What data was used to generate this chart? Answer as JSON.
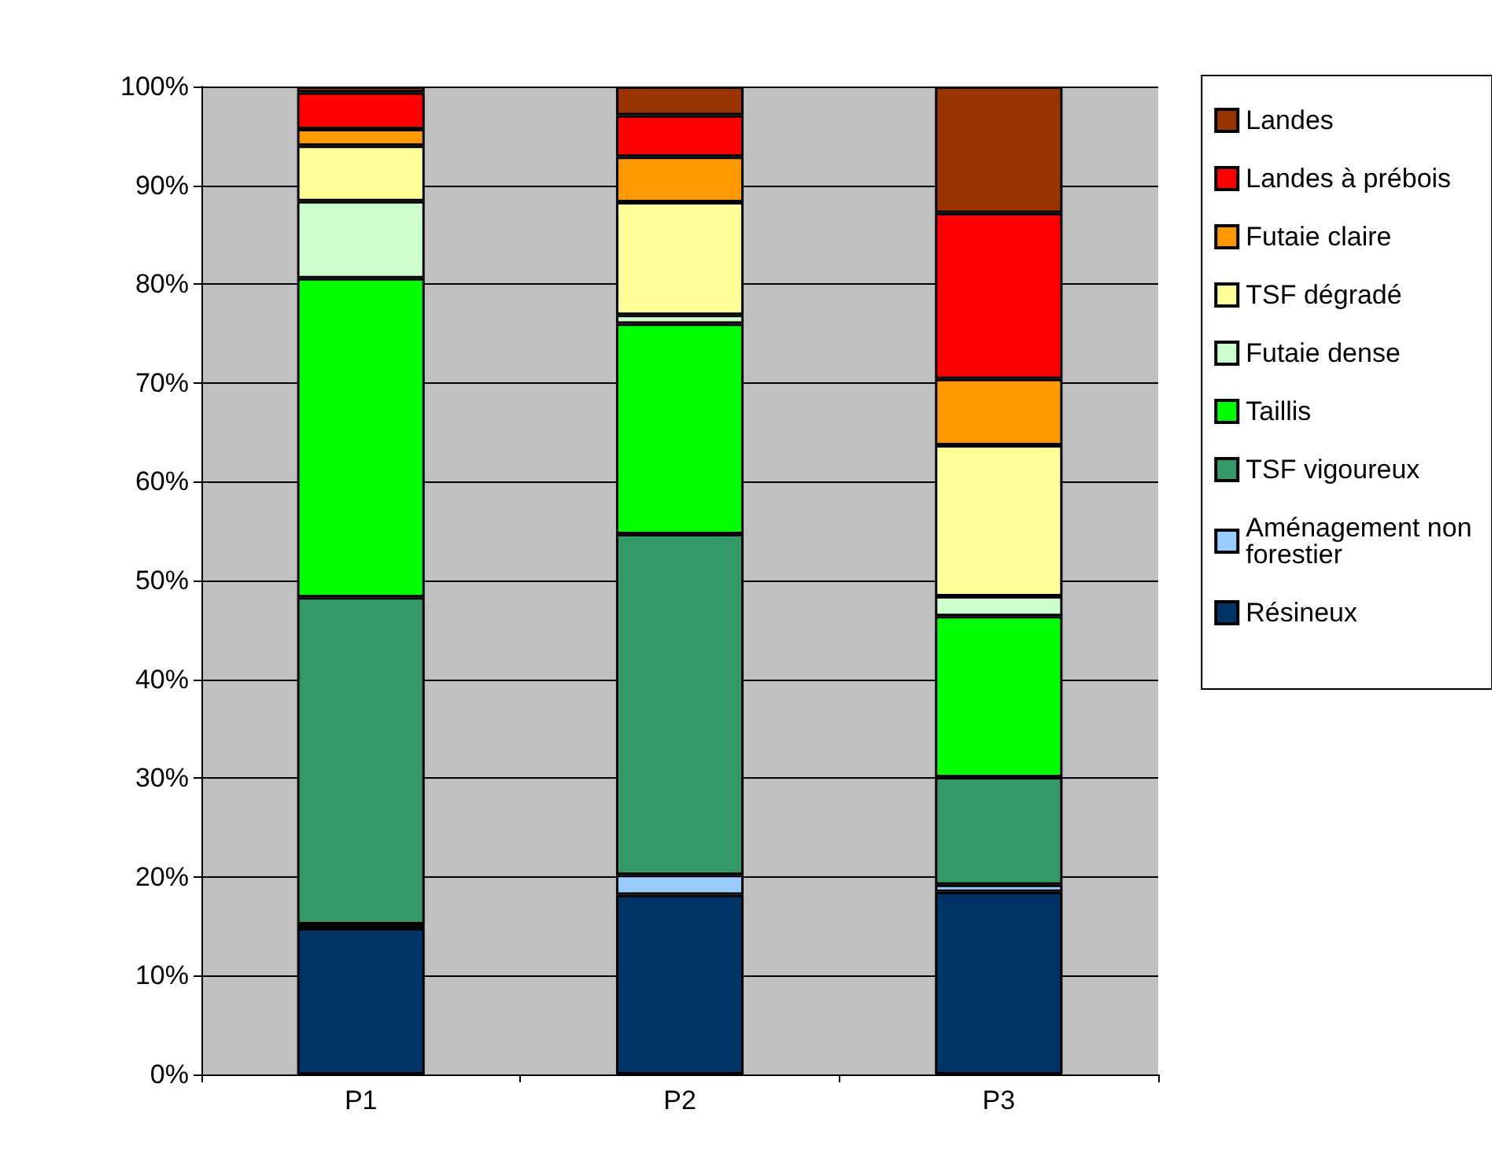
{
  "chart_data": {
    "type": "bar",
    "stacked": true,
    "categories": [
      "P1",
      "P2",
      "P3"
    ],
    "series": [
      {
        "name": "Résineux",
        "color": "#003366",
        "values": [
          14.8,
          18.2,
          18.5
        ]
      },
      {
        "name": "Aménagement non forestier",
        "color": "#99ccff",
        "values": [
          0.4,
          2.0,
          0.7
        ]
      },
      {
        "name": "TSF vigoureux",
        "color": "#339966",
        "values": [
          33.1,
          34.5,
          10.9
        ]
      },
      {
        "name": "Taillis",
        "color": "#00ff00",
        "values": [
          32.3,
          21.3,
          16.3
        ]
      },
      {
        "name": "Futaie dense",
        "color": "#ccffcc",
        "values": [
          7.8,
          0.9,
          2.0
        ]
      },
      {
        "name": "TSF dégradé",
        "color": "#ffff99",
        "values": [
          5.6,
          11.4,
          15.3
        ]
      },
      {
        "name": "Futaie claire",
        "color": "#ff9900",
        "values": [
          1.7,
          4.6,
          6.7
        ]
      },
      {
        "name": "Landes à prébois",
        "color": "#ff0000",
        "values": [
          3.7,
          4.2,
          16.8
        ]
      },
      {
        "name": "Landes",
        "color": "#993300",
        "values": [
          0.6,
          2.9,
          12.8
        ]
      }
    ],
    "ylim": [
      0,
      100
    ],
    "yticks": [
      {
        "value": 0,
        "label": "0%"
      },
      {
        "value": 10,
        "label": "10%"
      },
      {
        "value": 20,
        "label": "20%"
      },
      {
        "value": 30,
        "label": "30%"
      },
      {
        "value": 40,
        "label": "40%"
      },
      {
        "value": 50,
        "label": "50%"
      },
      {
        "value": 60,
        "label": "60%"
      },
      {
        "value": 70,
        "label": "70%"
      },
      {
        "value": 80,
        "label": "80%"
      },
      {
        "value": 90,
        "label": "90%"
      },
      {
        "value": 100,
        "label": "100%"
      }
    ],
    "grid": "y",
    "legend": "right"
  }
}
